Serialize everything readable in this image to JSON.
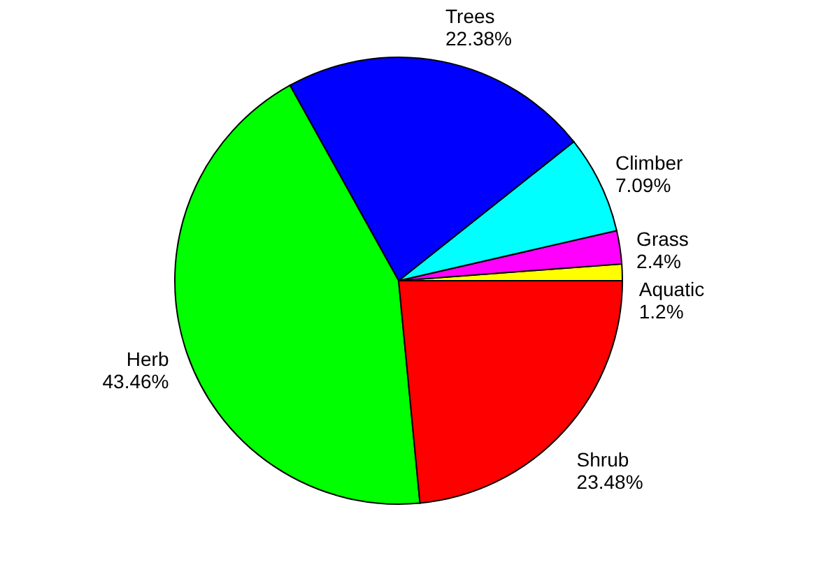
{
  "chart_data": {
    "type": "pie",
    "categories": [
      "Aquatic",
      "Grass",
      "Climber",
      "Trees",
      "Herb",
      "Shrub"
    ],
    "values": [
      1.2,
      2.4,
      7.09,
      22.38,
      43.46,
      23.48
    ],
    "value_labels": [
      "1.2%",
      "2.4%",
      "7.09%",
      "22.38%",
      "43.46%",
      "23.48%"
    ],
    "colors": [
      "#ffff00",
      "#ff00ff",
      "#00ffff",
      "#0000ff",
      "#00ff00",
      "#ff0000"
    ],
    "legend": false
  }
}
